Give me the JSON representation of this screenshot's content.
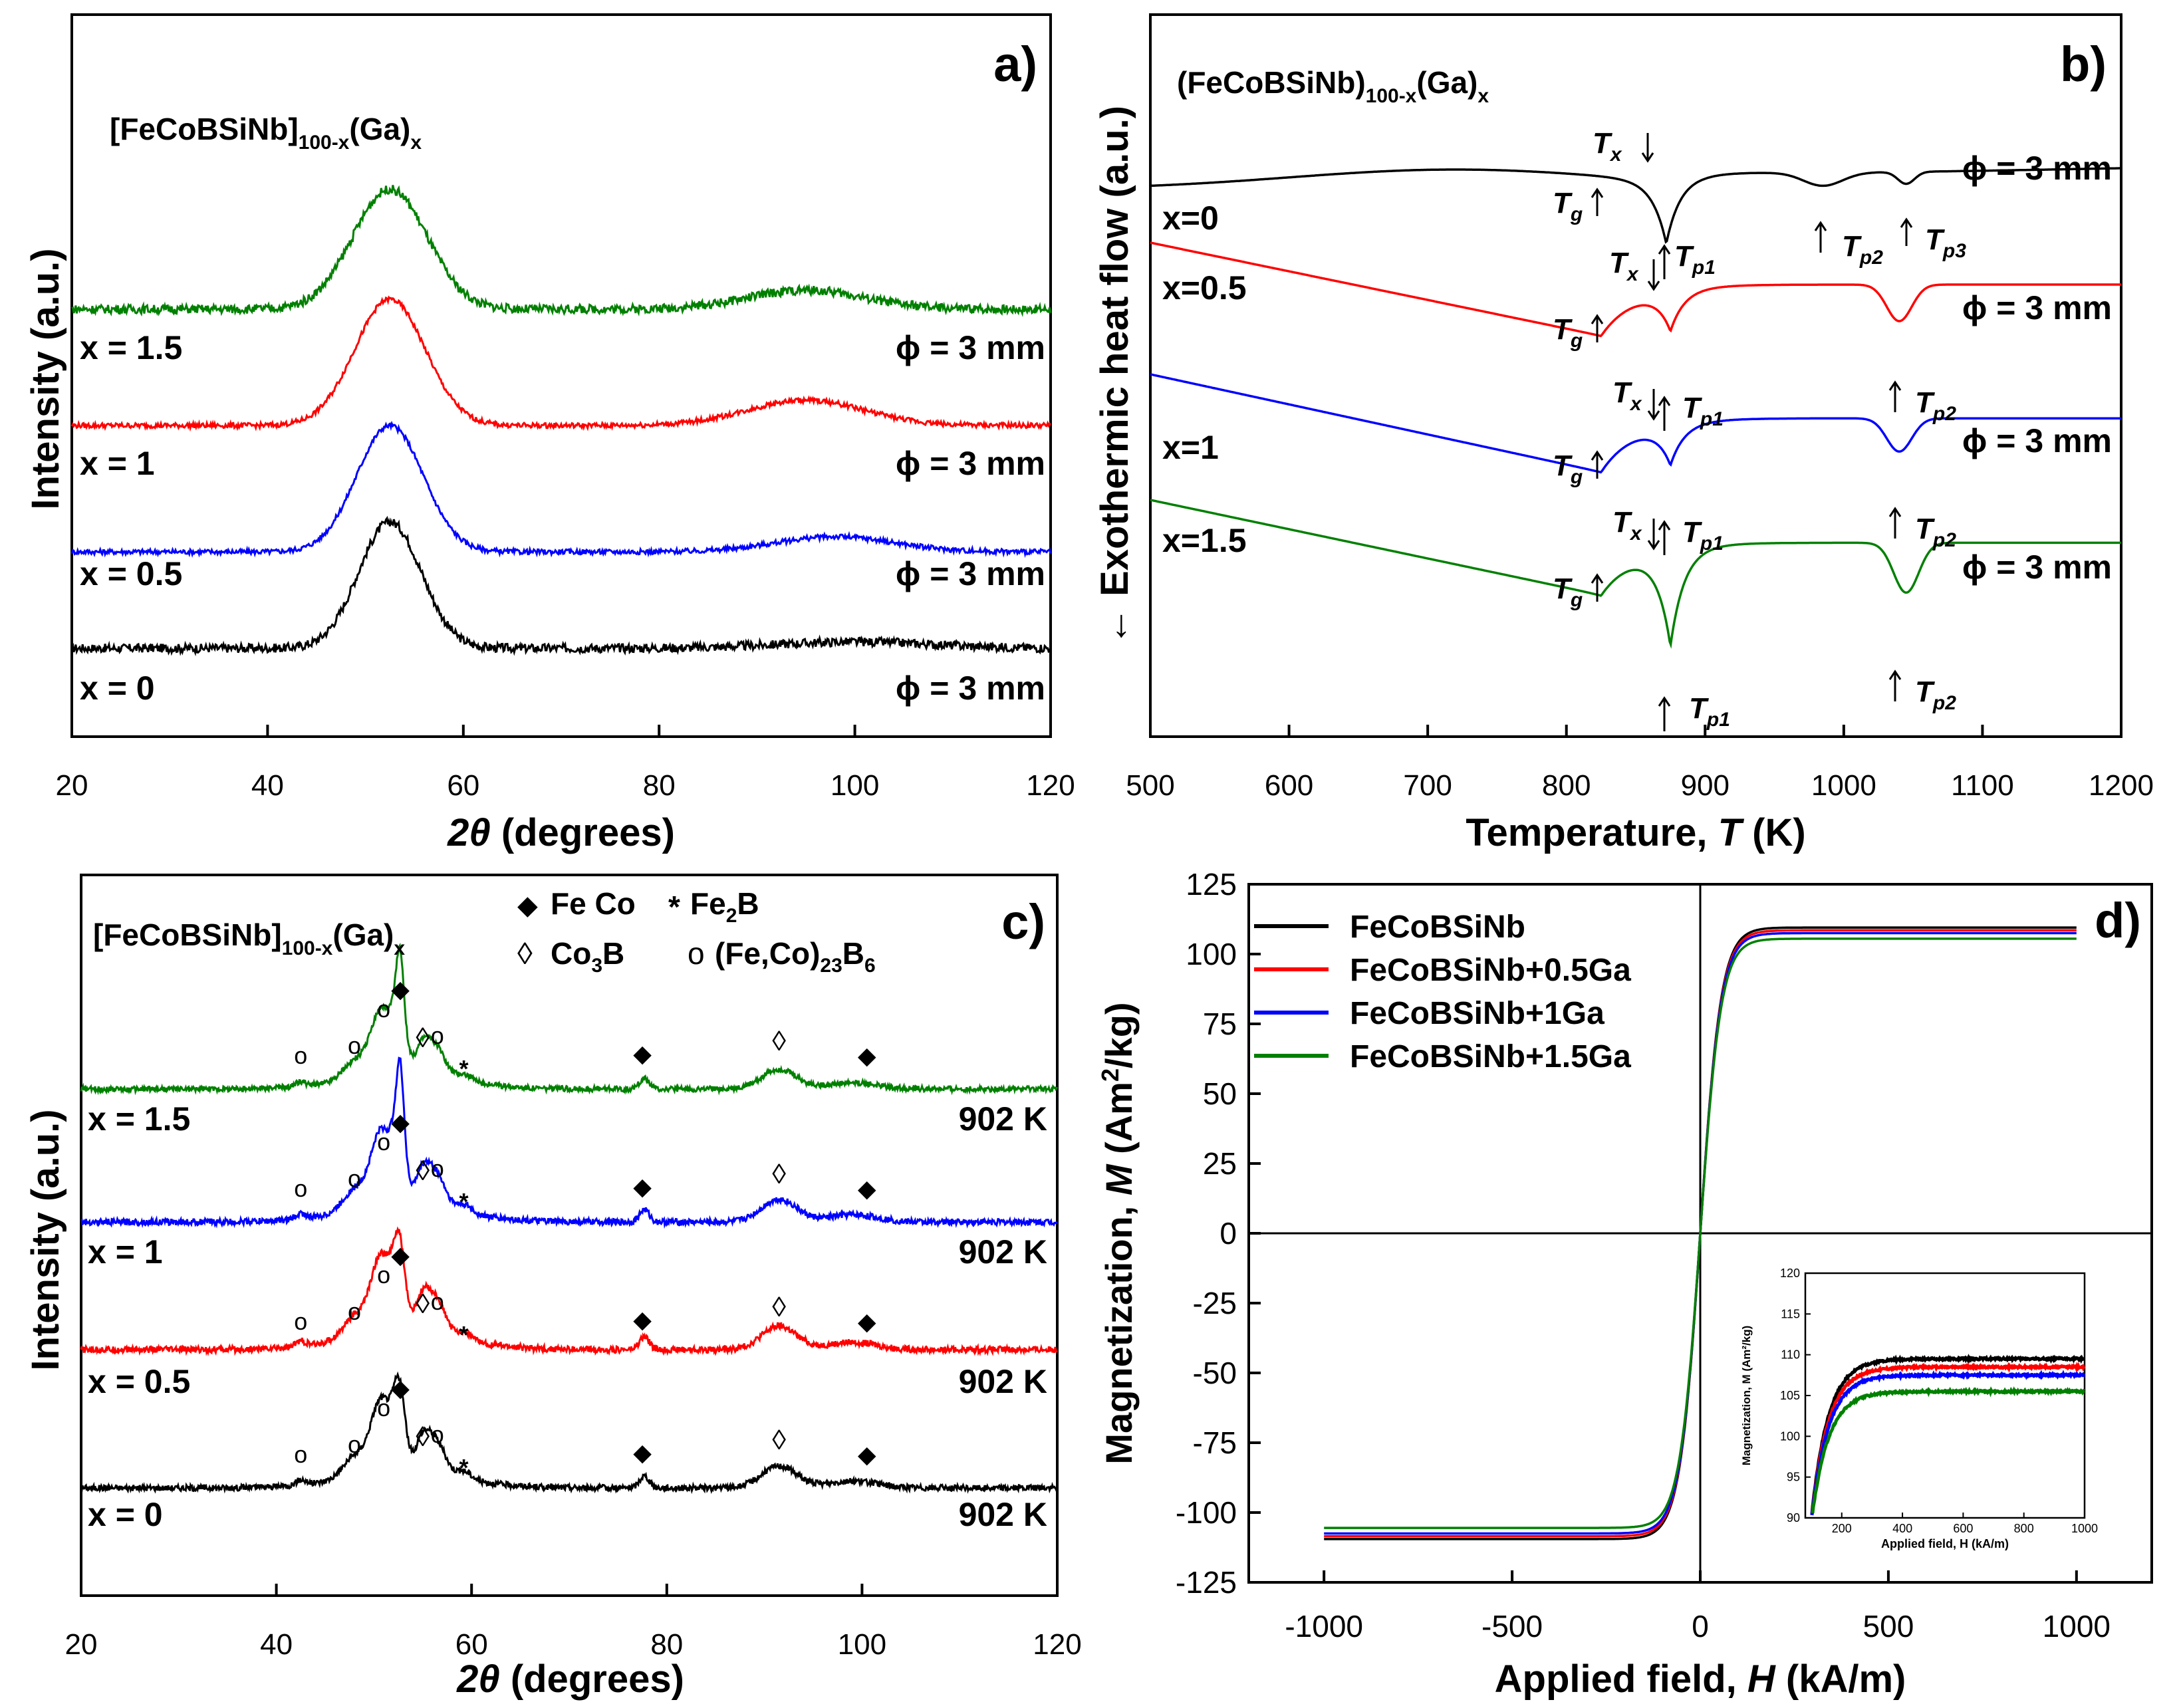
{
  "chart_data": [
    {
      "panel": "a",
      "type": "line",
      "panel_label": "a)",
      "formula": {
        "base": "[FeCoBSiNb]",
        "sub1": "100-x",
        "mid": "(Ga)",
        "sub2": "x"
      },
      "xlabel_italic": "2θ",
      "xlabel_rest": " (degrees)",
      "ylabel": "Intensity (a.u.)",
      "xlim": [
        20,
        120
      ],
      "x_ticks": [
        20,
        40,
        60,
        80,
        100,
        120
      ],
      "series": [
        {
          "name": "x = 0",
          "color": "#000000",
          "offset": 0.0,
          "diameter": "ϕ = 3 mm",
          "peaks": [
            [
              52.5,
              1.0,
              3.2
            ],
            [
              100,
              0.05,
              8
            ]
          ],
          "noise": 0.035
        },
        {
          "name": "x = 0.5",
          "color": "#0000ff",
          "offset": 0.8,
          "diameter": "ϕ = 3 mm",
          "peaks": [
            [
              52.5,
              1.0,
              3.4
            ],
            [
              98,
              0.12,
              6
            ]
          ],
          "noise": 0.02
        },
        {
          "name": "x = 1",
          "color": "#ff0000",
          "offset": 1.6,
          "diameter": "ϕ = 3 mm",
          "peaks": [
            [
              52.5,
              1.0,
              3.6
            ],
            [
              95,
              0.2,
              6
            ]
          ],
          "noise": 0.02
        },
        {
          "name": "x = 1.5",
          "color": "#008000",
          "offset": 2.6,
          "diameter": "ϕ = 3 mm",
          "peaks": [
            [
              52.5,
              0.95,
              3.8
            ],
            [
              95,
              0.15,
              6
            ]
          ],
          "noise": 0.035
        }
      ]
    },
    {
      "panel": "b",
      "type": "line",
      "panel_label": "b)",
      "formula": {
        "base": "(FeCoBSiNb)",
        "sub1": "100-x",
        "mid": "(Ga)",
        "sub2": "x"
      },
      "xlabel": "Temperature, ",
      "xlabel_italic": "T",
      "xlabel_unit": " (K)",
      "ylabel": "← Exothermic heat flow (a.u.)",
      "xlim": [
        500,
        1200
      ],
      "x_ticks": [
        500,
        600,
        700,
        800,
        900,
        1000,
        1100,
        1200
      ],
      "series": [
        {
          "name": "x=0",
          "color": "#000000",
          "diameter": "ϕ = 3 mm",
          "Tg": 825,
          "Tx": 855,
          "Tp": [
            872,
            985,
            1045
          ]
        },
        {
          "name": "x=0.5",
          "color": "#ff0000",
          "diameter": "ϕ = 3 mm",
          "Tg": 825,
          "Tx": 860,
          "Tp": [
            875,
            1040
          ]
        },
        {
          "name": "x=1",
          "color": "#0000ff",
          "diameter": "ϕ = 3 mm",
          "Tg": 825,
          "Tx": 860,
          "Tp": [
            875,
            1040
          ]
        },
        {
          "name": "x=1.5",
          "color": "#008000",
          "diameter": "ϕ = 3 mm",
          "Tg": 825,
          "Tx": 860,
          "Tp": [
            875,
            1045
          ]
        }
      ],
      "annotation_symbols": {
        "Tg": "g",
        "Tx": "x",
        "Tp1": "p1",
        "Tp2": "p2",
        "Tp3": "p3",
        "T": "T"
      }
    },
    {
      "panel": "c",
      "type": "line",
      "panel_label": "c)",
      "formula": {
        "base": "[FeCoBSiNb]",
        "sub1": "100-x",
        "mid": "(Ga)",
        "sub2": "x"
      },
      "legend": {
        "fe_co": "Fe Co",
        "fe2b_a": "Fe",
        "fe2b_sub": "2",
        "fe2b_b": "B",
        "co3b_a": "Co",
        "co3b_sub": "3",
        "co3b_b": "B",
        "m23_a": "(Fe,Co)",
        "m23_sub1": "23",
        "m23_b": "B",
        "m23_sub2": "6"
      },
      "xlabel_italic": "2θ",
      "xlabel_rest": " (degrees)",
      "ylabel": "Intensity (a.u.)",
      "xlim": [
        20,
        120
      ],
      "x_ticks": [
        20,
        40,
        60,
        80,
        100,
        120
      ],
      "series": [
        {
          "name": "x = 0",
          "color": "#000000",
          "temperature": "902 K"
        },
        {
          "name": "x = 0.5",
          "color": "#ff0000",
          "temperature": "902 K"
        },
        {
          "name": "x = 1",
          "color": "#0000ff",
          "temperature": "902 K"
        },
        {
          "name": "x = 1.5",
          "color": "#008000",
          "temperature": "902 K"
        }
      ],
      "phase_markers": [
        {
          "symbol": "o",
          "x": 42.5
        },
        {
          "symbol": "o",
          "x": 48
        },
        {
          "symbol": "o",
          "x": 51
        },
        {
          "symbol": "◆",
          "x": 52.7
        },
        {
          "symbol": "◊",
          "x": 55
        },
        {
          "symbol": "o",
          "x": 56.5
        },
        {
          "symbol": "*",
          "x": 59.2
        },
        {
          "symbol": "◆",
          "x": 77.5
        },
        {
          "symbol": "◊",
          "x": 91.5
        },
        {
          "symbol": "◆",
          "x": 100.5
        }
      ]
    },
    {
      "panel": "d",
      "type": "line",
      "panel_label": "d)",
      "xlabel": "Applied field, ",
      "xlabel_italic": "H",
      "xlabel_unit": " (kA/m)",
      "ylabel_a": "Magnetization, ",
      "ylabel_italic": "M",
      "ylabel_b": " (Am",
      "ylabel_sup": "2",
      "ylabel_c": "/kg)",
      "xlim": [
        -1200,
        1200
      ],
      "ylim": [
        -125,
        125
      ],
      "x_ticks": [
        -1000,
        -500,
        0,
        500,
        1000
      ],
      "y_ticks": [
        -125,
        -100,
        -75,
        -50,
        -25,
        0,
        25,
        50,
        75,
        100,
        125
      ],
      "series": [
        {
          "name": "FeCoBSiNb",
          "color": "#000000",
          "Ms": 109.5
        },
        {
          "name": "FeCoBSiNb+0.5Ga",
          "color": "#ff0000",
          "Ms": 108.5
        },
        {
          "name": "FeCoBSiNb+1Ga",
          "color": "#0000ff",
          "Ms": 107.5
        },
        {
          "name": "FeCoBSiNb+1.5Ga",
          "color": "#008000",
          "Ms": 105.5
        }
      ],
      "inset": {
        "xlabel": "Applied field, H (kA/m)",
        "ylabel": "Magnetization, M (Am²/kg)",
        "xlim": [
          80,
          1000
        ],
        "ylim": [
          90,
          120
        ],
        "x_ticks": [
          200,
          400,
          600,
          800,
          1000
        ],
        "y_ticks": [
          90,
          95,
          100,
          105,
          110,
          115,
          120
        ]
      }
    }
  ]
}
